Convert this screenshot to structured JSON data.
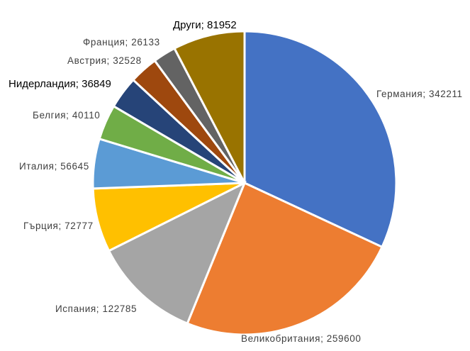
{
  "chart_data": {
    "type": "pie",
    "slices": [
      {
        "name": "Германия",
        "value": 342211,
        "label": "Германия; 342211",
        "color": "#4472C4"
      },
      {
        "name": "Великобритания",
        "value": 259600,
        "label": "Великобритания; 259600",
        "color": "#ED7D31"
      },
      {
        "name": "Испания",
        "value": 122785,
        "label": "Испания; 122785",
        "color": "#A5A5A5"
      },
      {
        "name": "Гърция",
        "value": 72777,
        "label": "Гърция; 72777",
        "color": "#FFC000"
      },
      {
        "name": "Италия",
        "value": 56645,
        "label": "Италия; 56645",
        "color": "#5B9BD5"
      },
      {
        "name": "Белгия",
        "value": 40110,
        "label": "Белгия; 40110",
        "color": "#70AD47"
      },
      {
        "name": "Нидерландия",
        "value": 36849,
        "label": "Нидерландия; 36849",
        "color": "#264478"
      },
      {
        "name": "Австрия",
        "value": 32528,
        "label": "Австрия; 32528",
        "color": "#9E480E"
      },
      {
        "name": "Франция",
        "value": 26133,
        "label": "Франция; 26133",
        "color": "#636363"
      },
      {
        "name": "Други",
        "value": 81952,
        "label": "Други; 81952",
        "color": "#997300"
      }
    ]
  }
}
